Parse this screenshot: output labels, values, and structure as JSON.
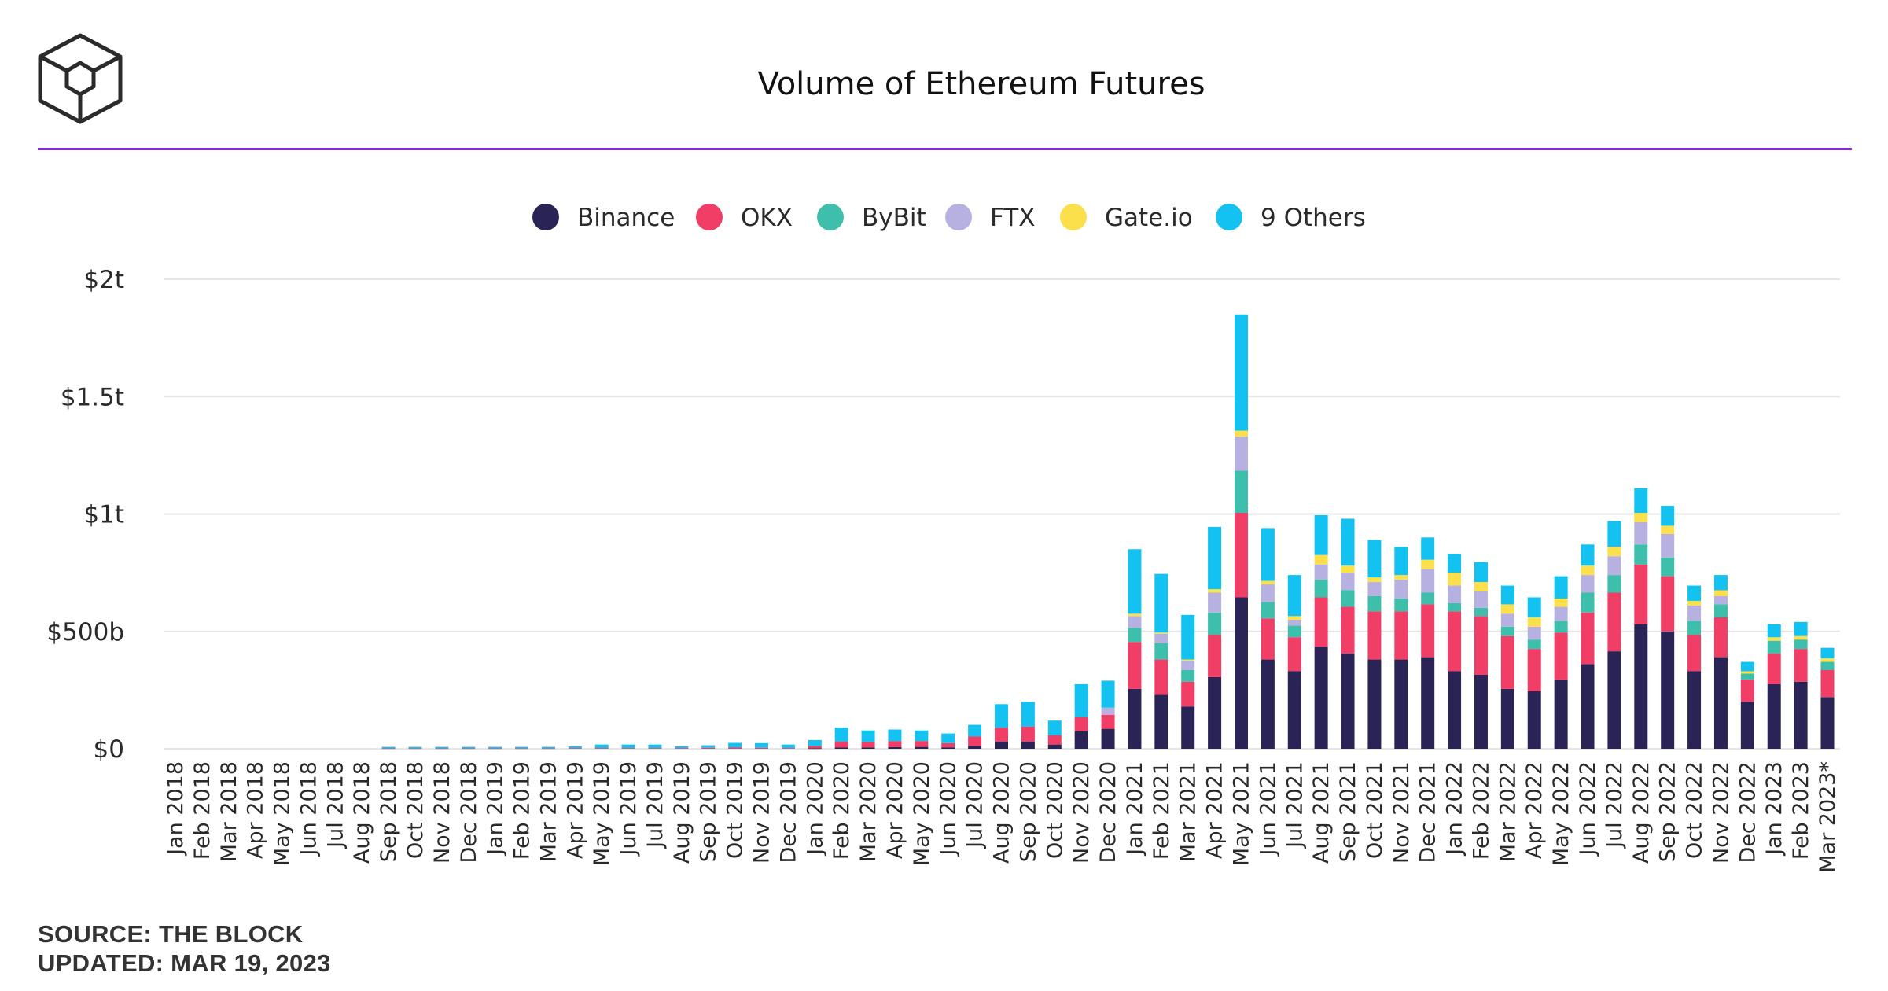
{
  "header": {
    "title": "Volume of Ethereum Futures",
    "logo": "the-block-cube-logo"
  },
  "footer": {
    "source": "SOURCE: THE BLOCK",
    "updated": "UPDATED: MAR 19, 2023"
  },
  "colors": {
    "accent_line": "#8a2be2",
    "grid": "#e6e6e6"
  },
  "chart_data": {
    "type": "bar",
    "stacked": true,
    "title": "Volume of Ethereum Futures",
    "xlabel": "",
    "ylabel": "",
    "ylim": [
      0,
      2000
    ],
    "value_unit": "billions USD",
    "yticks": [
      {
        "value": 0,
        "label": "$0"
      },
      {
        "value": 500,
        "label": "$500b"
      },
      {
        "value": 1000,
        "label": "$1t"
      },
      {
        "value": 1500,
        "label": "$1.5t"
      },
      {
        "value": 2000,
        "label": "$2t"
      }
    ],
    "grid": true,
    "legend_position": "top-center",
    "categories": [
      "Jan 2018",
      "Feb 2018",
      "Mar 2018",
      "Apr 2018",
      "May 2018",
      "Jun 2018",
      "Jul 2018",
      "Aug 2018",
      "Sep 2018",
      "Oct 2018",
      "Nov 2018",
      "Dec 2018",
      "Jan 2019",
      "Feb 2019",
      "Mar 2019",
      "Apr 2019",
      "May 2019",
      "Jun 2019",
      "Jul 2019",
      "Aug 2019",
      "Sep 2019",
      "Oct 2019",
      "Nov 2019",
      "Dec 2019",
      "Jan 2020",
      "Feb 2020",
      "Mar 2020",
      "Apr 2020",
      "May 2020",
      "Jun 2020",
      "Jul 2020",
      "Aug 2020",
      "Sep 2020",
      "Oct 2020",
      "Nov 2020",
      "Dec 2020",
      "Jan 2021",
      "Feb 2021",
      "Mar 2021",
      "Apr 2021",
      "May 2021",
      "Jun 2021",
      "Jul 2021",
      "Aug 2021",
      "Sep 2021",
      "Oct 2021",
      "Nov 2021",
      "Dec 2021",
      "Jan 2022",
      "Feb 2022",
      "Mar 2022",
      "Apr 2022",
      "May 2022",
      "Jun 2022",
      "Jul 2022",
      "Aug 2022",
      "Sep 2022",
      "Oct 2022",
      "Nov 2022",
      "Dec 2022",
      "Jan 2023",
      "Feb 2023",
      "Mar 2023*"
    ],
    "series": [
      {
        "name": "Binance",
        "color": "#2a2356",
        "values": [
          0,
          0,
          0,
          0,
          0,
          0,
          0,
          0,
          0,
          0,
          0,
          0,
          0,
          0,
          0,
          0,
          0,
          0,
          0,
          0,
          0,
          0,
          0,
          0,
          2,
          5,
          6,
          7,
          8,
          6,
          12,
          30,
          30,
          18,
          75,
          85,
          255,
          230,
          180,
          305,
          645,
          380,
          330,
          435,
          405,
          380,
          380,
          390,
          330,
          315,
          255,
          245,
          295,
          360,
          415,
          530,
          500,
          330,
          390,
          200,
          275,
          285,
          220
        ]
      },
      {
        "name": "OKX",
        "color": "#f03e66",
        "values": [
          0,
          0,
          0,
          0,
          0,
          0,
          0,
          0,
          2,
          2,
          2,
          2,
          2,
          2,
          2,
          3,
          3,
          3,
          3,
          3,
          4,
          5,
          4,
          3,
          10,
          25,
          22,
          25,
          25,
          18,
          40,
          60,
          65,
          40,
          60,
          60,
          200,
          150,
          105,
          180,
          360,
          175,
          145,
          210,
          200,
          205,
          205,
          225,
          255,
          250,
          225,
          180,
          200,
          220,
          250,
          255,
          235,
          155,
          170,
          95,
          130,
          140,
          115
        ]
      },
      {
        "name": "ByBit",
        "color": "#3dbfab",
        "values": [
          0,
          0,
          0,
          0,
          0,
          0,
          0,
          0,
          0,
          0,
          0,
          0,
          0,
          0,
          0,
          0,
          0,
          0,
          0,
          0,
          0,
          0,
          0,
          0,
          0,
          0,
          0,
          0,
          0,
          0,
          0,
          0,
          0,
          0,
          0,
          0,
          60,
          70,
          50,
          95,
          180,
          70,
          50,
          75,
          70,
          65,
          55,
          50,
          35,
          35,
          40,
          40,
          50,
          85,
          75,
          85,
          80,
          60,
          55,
          25,
          55,
          40,
          35
        ]
      },
      {
        "name": "FTX",
        "color": "#b7b1e2",
        "values": [
          0,
          0,
          0,
          0,
          0,
          0,
          0,
          0,
          0,
          0,
          0,
          0,
          0,
          0,
          0,
          0,
          0,
          0,
          0,
          0,
          0,
          0,
          0,
          0,
          0,
          0,
          0,
          0,
          0,
          0,
          0,
          0,
          0,
          0,
          0,
          30,
          50,
          40,
          40,
          85,
          145,
          75,
          25,
          65,
          75,
          60,
          80,
          100,
          75,
          70,
          55,
          55,
          60,
          75,
          80,
          95,
          100,
          65,
          35,
          0,
          0,
          0,
          0
        ]
      },
      {
        "name": "Gate.io",
        "color": "#fbdf4b",
        "values": [
          0,
          0,
          0,
          0,
          0,
          0,
          0,
          0,
          0,
          0,
          0,
          0,
          0,
          0,
          0,
          0,
          0,
          0,
          0,
          0,
          0,
          0,
          0,
          0,
          0,
          0,
          0,
          0,
          0,
          0,
          0,
          0,
          0,
          0,
          0,
          0,
          10,
          5,
          5,
          15,
          25,
          15,
          15,
          40,
          30,
          20,
          20,
          40,
          55,
          40,
          40,
          40,
          35,
          40,
          40,
          40,
          35,
          20,
          25,
          10,
          15,
          15,
          15
        ]
      },
      {
        "name": "9 Others",
        "color": "#14c2f2",
        "values": [
          0,
          0,
          0,
          0,
          0,
          0,
          0,
          0,
          6,
          6,
          6,
          6,
          6,
          6,
          6,
          8,
          15,
          15,
          15,
          8,
          11,
          20,
          20,
          15,
          25,
          60,
          50,
          50,
          45,
          41,
          50,
          100,
          105,
          62,
          140,
          115,
          275,
          250,
          190,
          265,
          495,
          225,
          175,
          170,
          200,
          160,
          120,
          95,
          80,
          85,
          80,
          85,
          95,
          90,
          110,
          105,
          85,
          65,
          65,
          40,
          55,
          60,
          45
        ]
      }
    ]
  }
}
